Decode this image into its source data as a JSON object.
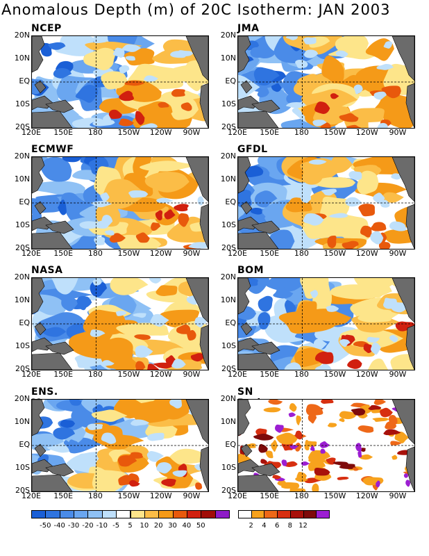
{
  "title": "Anomalous Depth (m) of 20C Isotherm: JAN 2003",
  "panels": [
    {
      "name": "NCEP"
    },
    {
      "name": "JMA"
    },
    {
      "name": "ECMWF"
    },
    {
      "name": "GFDL"
    },
    {
      "name": "NASA"
    },
    {
      "name": "BOM"
    },
    {
      "name": "ENS. Mean"
    },
    {
      "name": "SN Ratio"
    }
  ],
  "y_ticks": [
    "20N",
    "10N",
    "EQ",
    "10S",
    "20S"
  ],
  "x_ticks": [
    "120E",
    "150E",
    "180",
    "150W",
    "120W",
    "90W"
  ],
  "colorbar_anomaly": {
    "labels": [
      "-50",
      "-40",
      "-30",
      "-20",
      "-10",
      "-5",
      "5",
      "10",
      "20",
      "30",
      "40",
      "50"
    ],
    "colors": [
      "#1a5fd6",
      "#2f74e0",
      "#4a8be8",
      "#6aa6f0",
      "#8fc1f5",
      "#bfe0fb",
      "#ffffff",
      "#fde58a",
      "#fbbd47",
      "#f59a18",
      "#e8590c",
      "#d1200f",
      "#a10d08",
      "#8e1cc7"
    ]
  },
  "colorbar_snr": {
    "labels": [
      "2",
      "4",
      "6",
      "8",
      "12"
    ],
    "colors": [
      "#ffffff",
      "#f7a21d",
      "#ee6818",
      "#d72f10",
      "#a8110b",
      "#7e0a0a",
      "#9c1ed2"
    ]
  },
  "colors": {
    "land": "#6b6b6b",
    "ocean": "#ffffff"
  }
}
